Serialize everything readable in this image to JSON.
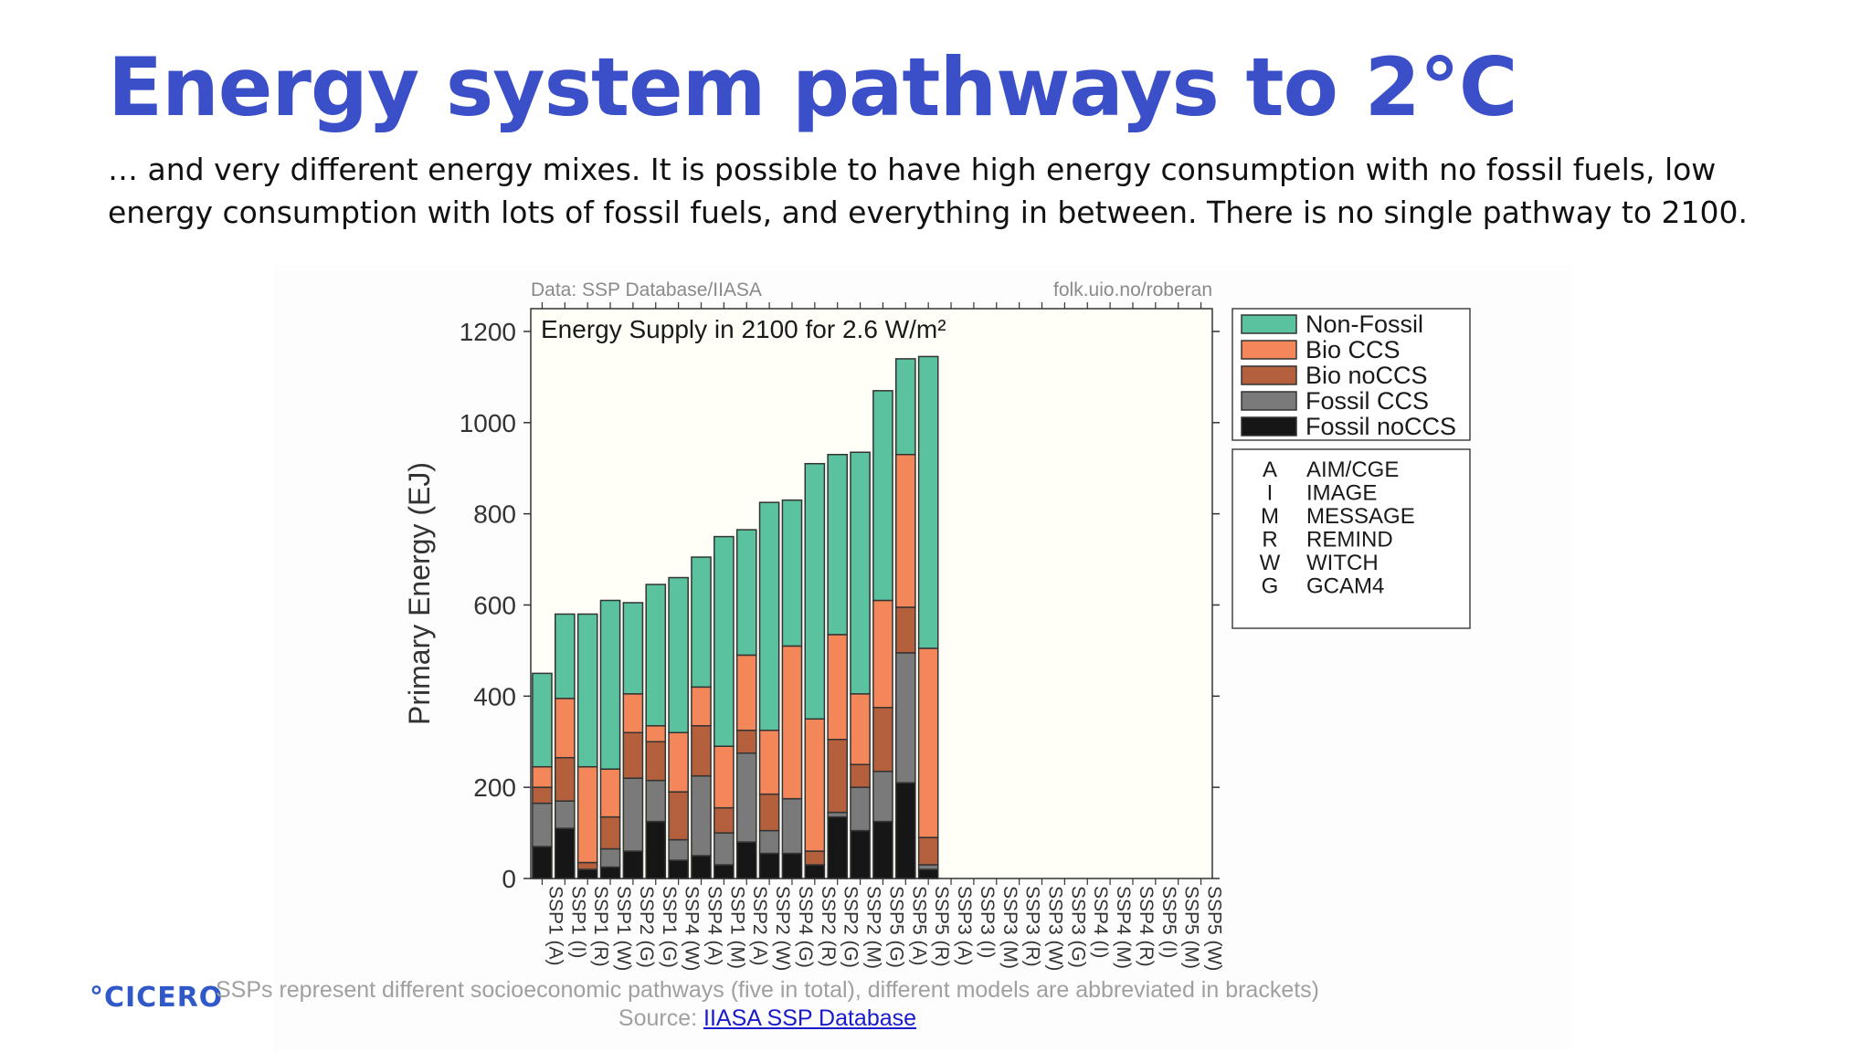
{
  "slide": {
    "title": "Energy system pathways to 2°C",
    "body": "… and very different energy mixes. It is possible to have high energy consumption with no fossil fuels, low energy consumption with lots of fossil fuels, and everything in between. There is no single pathway to 2100.",
    "logo": "°CICERO",
    "footnote": "SSPs represent different socioeconomic pathways (five in total), different models are abbreviated in brackets)",
    "source_prefix": "Source: ",
    "source_link": "IIASA SSP Database"
  },
  "chart_data": {
    "type": "bar",
    "stacked": true,
    "title": "Energy Supply in 2100 for 2.6 W/m²",
    "credit_left": "Data: SSP Database/IIASA",
    "credit_right": "folk.uio.no/roberan",
    "xlabel": "",
    "ylabel": "Primary Energy (EJ)",
    "ylim": [
      0,
      1250
    ],
    "yticks": [
      0,
      200,
      400,
      600,
      800,
      1000,
      1200
    ],
    "grid": false,
    "legend_position": "right",
    "categories": [
      "SSP1 (A)",
      "SSP1 (I)",
      "SSP1 (R)",
      "SSP1 (W)",
      "SSP2 (G)",
      "SSP1 (G)",
      "SSP4 (W)",
      "SSP4 (A)",
      "SSP1 (M)",
      "SSP2 (A)",
      "SSP2 (W)",
      "SSP4 (G)",
      "SSP2 (R)",
      "SSP2 (G)",
      "SSP2 (M)",
      "SSP5 (G)",
      "SSP5 (A)",
      "SSP5 (R)",
      "SSP3 (A)",
      "SSP3 (I)",
      "SSP3 (M)",
      "SSP3 (R)",
      "SSP3 (W)",
      "SSP3 (G)",
      "SSP4 (I)",
      "SSP4 (M)",
      "SSP4 (R)",
      "SSP5 (I)",
      "SSP5 (M)",
      "SSP5 (W)"
    ],
    "series": [
      {
        "name": "Fossil noCCS",
        "color": "#161616",
        "values": [
          70,
          110,
          20,
          25,
          60,
          125,
          40,
          50,
          30,
          80,
          55,
          55,
          30,
          135,
          105,
          125,
          210,
          20,
          0,
          0,
          0,
          0,
          0,
          0,
          0,
          0,
          0,
          0,
          0,
          0
        ]
      },
      {
        "name": "Fossil CCS",
        "color": "#7a7a7a",
        "values": [
          95,
          60,
          0,
          40,
          160,
          90,
          45,
          175,
          70,
          195,
          50,
          120,
          0,
          10,
          95,
          110,
          285,
          10,
          0,
          0,
          0,
          0,
          0,
          0,
          0,
          0,
          0,
          0,
          0,
          0
        ]
      },
      {
        "name": "Bio noCCS",
        "color": "#b4603c",
        "values": [
          35,
          95,
          15,
          70,
          100,
          85,
          105,
          110,
          55,
          50,
          80,
          0,
          30,
          160,
          50,
          140,
          100,
          60,
          0,
          0,
          0,
          0,
          0,
          0,
          0,
          0,
          0,
          0,
          0,
          0
        ]
      },
      {
        "name": "Bio CCS",
        "color": "#f4875a",
        "values": [
          45,
          130,
          210,
          105,
          85,
          35,
          130,
          85,
          135,
          165,
          140,
          335,
          290,
          230,
          155,
          235,
          335,
          415,
          0,
          0,
          0,
          0,
          0,
          0,
          0,
          0,
          0,
          0,
          0,
          0
        ]
      },
      {
        "name": "Non-Fossil",
        "color": "#5bc2a0",
        "values": [
          205,
          185,
          335,
          370,
          200,
          310,
          340,
          285,
          460,
          275,
          500,
          320,
          560,
          395,
          530,
          460,
          210,
          640,
          0,
          0,
          0,
          0,
          0,
          0,
          0,
          0,
          0,
          0,
          0,
          0
        ]
      }
    ],
    "model_key": [
      {
        "abbr": "A",
        "model": "AIM/CGE"
      },
      {
        "abbr": "I",
        "model": "IMAGE"
      },
      {
        "abbr": "M",
        "model": "MESSAGE"
      },
      {
        "abbr": "R",
        "model": "REMIND"
      },
      {
        "abbr": "W",
        "model": "WITCH"
      },
      {
        "abbr": "G",
        "model": "GCAM4"
      }
    ]
  }
}
